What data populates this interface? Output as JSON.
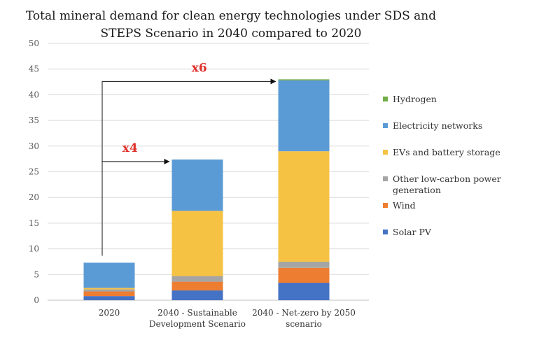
{
  "chart_data": {
    "type": "bar",
    "stacked": true,
    "title_lines": [
      "Total mineral demand for clean energy technologies under SDS and",
      "STEPS Scenario in 2040 compared to 2020"
    ],
    "xlabel": "",
    "ylabel": "",
    "ylim": [
      0,
      50
    ],
    "yticks": [
      0,
      5,
      10,
      15,
      20,
      25,
      30,
      35,
      40,
      45,
      50
    ],
    "grid": true,
    "legend_position": "right",
    "categories": [
      [
        "2020"
      ],
      [
        "2040 - Sustainable",
        "Development Scenario"
      ],
      [
        "2040 - Net-zero by 2050",
        "scenario"
      ]
    ],
    "series": [
      {
        "name": "Solar PV",
        "color": "#4472C4",
        "values": [
          0.8,
          1.9,
          3.4
        ]
      },
      {
        "name": "Wind",
        "color": "#ED7D31",
        "values": [
          0.9,
          1.7,
          2.9
        ]
      },
      {
        "name": "Other low-carbon power generation",
        "color": "#A5A5A5",
        "values": [
          0.4,
          1.1,
          1.2
        ]
      },
      {
        "name": "EVs and battery storage",
        "color": "#F6C243",
        "values": [
          0.3,
          12.7,
          21.5
        ]
      },
      {
        "name": "Electricity networks",
        "color": "#5B9BD5",
        "values": [
          4.9,
          10.0,
          13.8
        ]
      },
      {
        "name": "Hydrogen",
        "color": "#70AD47",
        "values": [
          0.0,
          0.0,
          0.2
        ]
      }
    ],
    "legend_order": [
      "Hydrogen",
      "Electricity networks",
      "EVs and battery storage",
      "Other low-carbon power generation",
      "Wind",
      "Solar PV"
    ],
    "legend_lines": {
      "Other low-carbon power generation": [
        "Other low-carbon power",
        "generation"
      ]
    },
    "annotations": [
      {
        "text": "x4",
        "from_category": 0,
        "to_category": 1,
        "color": "#E0312B"
      },
      {
        "text": "x6",
        "from_category": 0,
        "to_category": 2,
        "color": "#E0312B"
      }
    ]
  }
}
